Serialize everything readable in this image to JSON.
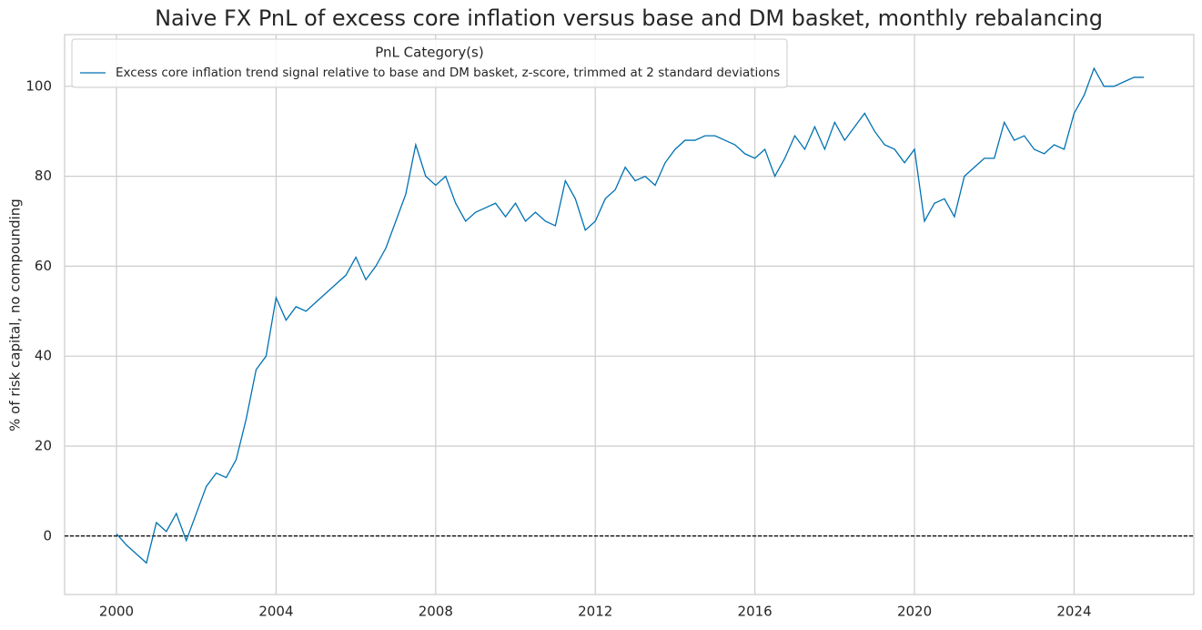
{
  "chart_data": {
    "type": "line",
    "title": "Naive FX PnL of excess core inflation versus base and DM basket, monthly rebalancing",
    "ylabel": "% of risk capital, no compounding",
    "legend_title": "PnL Category(s)",
    "legend_loc": "upper left",
    "grid": true,
    "reference_line": {
      "value": 0,
      "style": "dashed",
      "color": "#000000"
    },
    "xlim": [
      1998.7,
      2027.0
    ],
    "ylim": [
      -13,
      111.5
    ],
    "xticks": [
      2000,
      2004,
      2008,
      2012,
      2016,
      2020,
      2024
    ],
    "yticks": [
      0,
      20,
      40,
      60,
      80,
      100
    ],
    "x": [
      2000.0,
      2000.25,
      2000.5,
      2000.75,
      2001.0,
      2001.25,
      2001.5,
      2001.75,
      2002.0,
      2002.25,
      2002.5,
      2002.75,
      2003.0,
      2003.25,
      2003.5,
      2003.75,
      2004.0,
      2004.25,
      2004.5,
      2004.75,
      2005.0,
      2005.25,
      2005.5,
      2005.75,
      2006.0,
      2006.25,
      2006.5,
      2006.75,
      2007.0,
      2007.25,
      2007.5,
      2007.75,
      2008.0,
      2008.25,
      2008.5,
      2008.75,
      2009.0,
      2009.25,
      2009.5,
      2009.75,
      2010.0,
      2010.25,
      2010.5,
      2010.75,
      2011.0,
      2011.25,
      2011.5,
      2011.75,
      2012.0,
      2012.25,
      2012.5,
      2012.75,
      2013.0,
      2013.25,
      2013.5,
      2013.75,
      2014.0,
      2014.25,
      2014.5,
      2014.75,
      2015.0,
      2015.25,
      2015.5,
      2015.75,
      2016.0,
      2016.25,
      2016.5,
      2016.75,
      2017.0,
      2017.25,
      2017.5,
      2017.75,
      2018.0,
      2018.25,
      2018.5,
      2018.75,
      2019.0,
      2019.25,
      2019.5,
      2019.75,
      2020.0,
      2020.25,
      2020.5,
      2020.75,
      2021.0,
      2021.25,
      2021.5,
      2021.75,
      2022.0,
      2022.25,
      2022.5,
      2022.75,
      2023.0,
      2023.25,
      2023.5,
      2023.75,
      2024.0,
      2024.25,
      2024.5,
      2024.75,
      2025.0,
      2025.25,
      2025.5,
      2025.75
    ],
    "series": [
      {
        "name": "Excess core inflation trend signal relative to base and DM basket, z-score, trimmed at 2 standard deviations",
        "color": "#0072b2",
        "values": [
          0.5,
          -2,
          -4,
          -6,
          3,
          1,
          5,
          -1,
          5,
          11,
          14,
          13,
          17,
          26,
          37,
          40,
          53,
          48,
          51,
          50,
          52,
          54,
          56,
          58,
          62,
          57,
          60,
          64,
          70,
          76,
          87,
          80,
          78,
          80,
          74,
          70,
          72,
          73,
          74,
          71,
          74,
          70,
          72,
          70,
          69,
          79,
          75,
          68,
          70,
          75,
          77,
          82,
          79,
          80,
          78,
          83,
          86,
          88,
          88,
          89,
          89,
          88,
          87,
          85,
          84,
          86,
          80,
          84,
          89,
          86,
          91,
          86,
          92,
          88,
          91,
          94,
          90,
          87,
          86,
          83,
          86,
          70,
          74,
          75,
          71,
          80,
          82,
          84,
          84,
          92,
          88,
          89,
          86,
          85,
          87,
          86,
          94,
          98,
          104,
          100,
          100,
          101,
          102,
          102
        ]
      }
    ]
  }
}
